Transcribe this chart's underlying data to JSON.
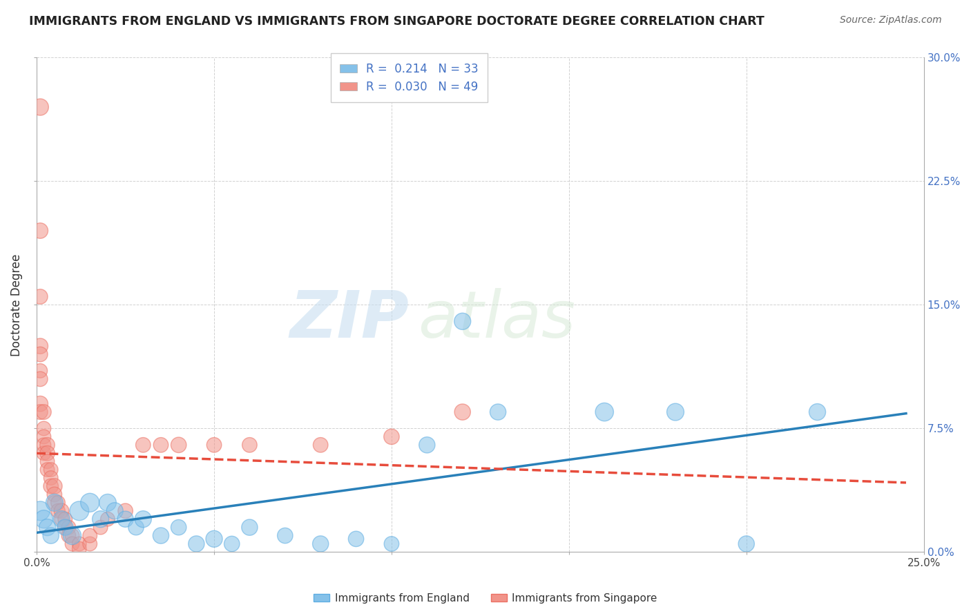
{
  "title": "IMMIGRANTS FROM ENGLAND VS IMMIGRANTS FROM SINGAPORE DOCTORATE DEGREE CORRELATION CHART",
  "source": "Source: ZipAtlas.com",
  "ylabel": "Doctorate Degree",
  "xlim": [
    0.0,
    0.25
  ],
  "ylim": [
    0.0,
    0.3
  ],
  "xticks": [
    0.0,
    0.05,
    0.1,
    0.15,
    0.2,
    0.25
  ],
  "yticks": [
    0.0,
    0.075,
    0.15,
    0.225,
    0.3
  ],
  "xticklabels": [
    "0.0%",
    "",
    "",
    "",
    "",
    "25.0%"
  ],
  "yticklabels_right": [
    "0.0%",
    "7.5%",
    "15.0%",
    "22.5%",
    "30.0%"
  ],
  "england_color": "#85c1e9",
  "england_edge": "#5dade2",
  "singapore_color": "#f1948a",
  "singapore_edge": "#ec7063",
  "england_line_color": "#2980b9",
  "singapore_line_color": "#e74c3c",
  "england_R": 0.214,
  "england_N": 33,
  "singapore_R": 0.03,
  "singapore_N": 49,
  "legend_label_england": "Immigrants from England",
  "legend_label_singapore": "Immigrants from Singapore",
  "watermark_zip": "ZIP",
  "watermark_atlas": "atlas",
  "england_data": [
    [
      0.001,
      0.025,
      400
    ],
    [
      0.002,
      0.02,
      350
    ],
    [
      0.003,
      0.015,
      300
    ],
    [
      0.004,
      0.01,
      280
    ],
    [
      0.005,
      0.03,
      320
    ],
    [
      0.007,
      0.02,
      300
    ],
    [
      0.008,
      0.015,
      280
    ],
    [
      0.01,
      0.01,
      350
    ],
    [
      0.012,
      0.025,
      400
    ],
    [
      0.015,
      0.03,
      380
    ],
    [
      0.018,
      0.02,
      300
    ],
    [
      0.02,
      0.03,
      320
    ],
    [
      0.022,
      0.025,
      300
    ],
    [
      0.025,
      0.02,
      280
    ],
    [
      0.028,
      0.015,
      260
    ],
    [
      0.03,
      0.02,
      300
    ],
    [
      0.035,
      0.01,
      280
    ],
    [
      0.04,
      0.015,
      260
    ],
    [
      0.045,
      0.005,
      280
    ],
    [
      0.05,
      0.008,
      300
    ],
    [
      0.055,
      0.005,
      260
    ],
    [
      0.06,
      0.015,
      280
    ],
    [
      0.07,
      0.01,
      260
    ],
    [
      0.08,
      0.005,
      280
    ],
    [
      0.09,
      0.008,
      260
    ],
    [
      0.1,
      0.005,
      240
    ],
    [
      0.11,
      0.065,
      280
    ],
    [
      0.12,
      0.14,
      300
    ],
    [
      0.13,
      0.085,
      280
    ],
    [
      0.16,
      0.085,
      360
    ],
    [
      0.18,
      0.085,
      320
    ],
    [
      0.2,
      0.005,
      280
    ],
    [
      0.22,
      0.085,
      300
    ]
  ],
  "singapore_data": [
    [
      0.001,
      0.27,
      300
    ],
    [
      0.001,
      0.195,
      260
    ],
    [
      0.001,
      0.155,
      240
    ],
    [
      0.001,
      0.125,
      260
    ],
    [
      0.001,
      0.12,
      240
    ],
    [
      0.001,
      0.11,
      220
    ],
    [
      0.001,
      0.105,
      240
    ],
    [
      0.001,
      0.09,
      260
    ],
    [
      0.001,
      0.085,
      240
    ],
    [
      0.002,
      0.085,
      240
    ],
    [
      0.002,
      0.075,
      220
    ],
    [
      0.002,
      0.07,
      220
    ],
    [
      0.002,
      0.065,
      220
    ],
    [
      0.002,
      0.06,
      220
    ],
    [
      0.003,
      0.065,
      240
    ],
    [
      0.003,
      0.06,
      240
    ],
    [
      0.003,
      0.055,
      220
    ],
    [
      0.003,
      0.05,
      220
    ],
    [
      0.004,
      0.05,
      220
    ],
    [
      0.004,
      0.045,
      220
    ],
    [
      0.004,
      0.04,
      240
    ],
    [
      0.005,
      0.04,
      260
    ],
    [
      0.005,
      0.035,
      240
    ],
    [
      0.005,
      0.03,
      220
    ],
    [
      0.006,
      0.03,
      220
    ],
    [
      0.006,
      0.025,
      220
    ],
    [
      0.007,
      0.025,
      240
    ],
    [
      0.007,
      0.02,
      220
    ],
    [
      0.008,
      0.02,
      220
    ],
    [
      0.008,
      0.015,
      220
    ],
    [
      0.009,
      0.015,
      220
    ],
    [
      0.009,
      0.01,
      220
    ],
    [
      0.01,
      0.01,
      220
    ],
    [
      0.01,
      0.005,
      220
    ],
    [
      0.012,
      0.005,
      220
    ],
    [
      0.012,
      0.002,
      220
    ],
    [
      0.015,
      0.005,
      220
    ],
    [
      0.015,
      0.01,
      220
    ],
    [
      0.018,
      0.015,
      220
    ],
    [
      0.02,
      0.02,
      220
    ],
    [
      0.025,
      0.025,
      240
    ],
    [
      0.03,
      0.065,
      240
    ],
    [
      0.035,
      0.065,
      240
    ],
    [
      0.04,
      0.065,
      260
    ],
    [
      0.05,
      0.065,
      240
    ],
    [
      0.06,
      0.065,
      240
    ],
    [
      0.08,
      0.065,
      240
    ],
    [
      0.1,
      0.07,
      260
    ],
    [
      0.12,
      0.085,
      280
    ]
  ]
}
